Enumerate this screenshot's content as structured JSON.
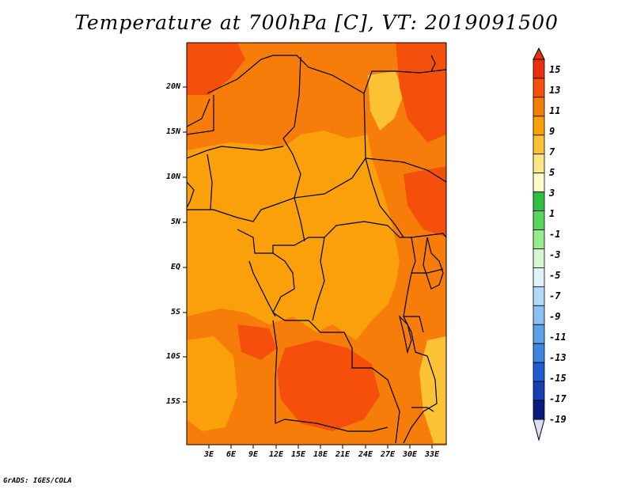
{
  "title": "Temperature at 700hPa [C], VT: 2019091500",
  "footer": "GrADS: IGES/COLA",
  "map": {
    "lat_labels": [
      "20N",
      "15N",
      "10N",
      "5N",
      "EQ",
      "5S",
      "10S",
      "15S"
    ],
    "lon_labels": [
      "3E",
      "6E",
      "9E",
      "12E",
      "15E",
      "18E",
      "21E",
      "24E",
      "27E",
      "30E",
      "33E"
    ],
    "colors": {
      "c15": "#e8300e",
      "c13": "#f5500b",
      "c11": "#f77d0a",
      "c9": "#f9a00a",
      "c7": "#fbc235",
      "frame": "#000000"
    }
  },
  "colorbar": {
    "labels": [
      "15",
      "13",
      "11",
      "9",
      "7",
      "5",
      "3",
      "1",
      "-1",
      "-3",
      "-5",
      "-7",
      "-9",
      "-11",
      "-13",
      "-15",
      "-17",
      "-19"
    ],
    "colors": [
      "#e8300e",
      "#f5500b",
      "#f77d0a",
      "#f9a00a",
      "#fbc235",
      "#fde784",
      "#fffac8",
      "#2fbf3f",
      "#56d65a",
      "#97eb8f",
      "#d4f7d0",
      "#e1f2fb",
      "#b4d9f7",
      "#8bc2f4",
      "#5aa1ea",
      "#3b87e0",
      "#1f5ccd",
      "#1540b4",
      "#0a1b80"
    ],
    "top_triangle_color": "#e8300e",
    "bottom_triangle_color": "#dcdcf5"
  }
}
